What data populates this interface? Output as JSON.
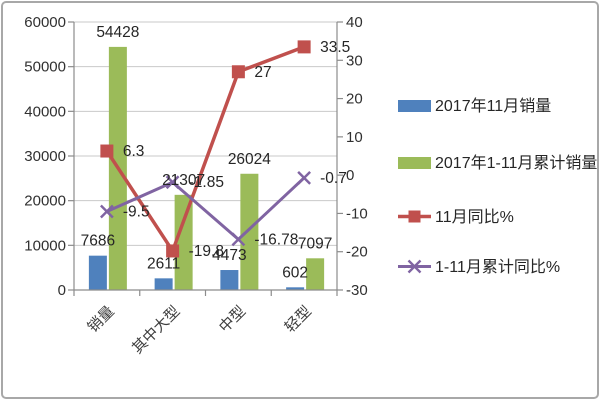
{
  "chart_data": {
    "type": "combo-bar-line",
    "categories": [
      "销量",
      "其中大型",
      "中型",
      "轻型"
    ],
    "series": [
      {
        "name": "2017年11月销量",
        "type": "bar",
        "axis": "left",
        "color": "#4f81bd",
        "values": [
          7686,
          2611,
          4473,
          602
        ]
      },
      {
        "name": "2017年1-11月累计销量",
        "type": "bar",
        "axis": "left",
        "color": "#9bbb59",
        "values": [
          54428,
          21307,
          26024,
          7097
        ]
      },
      {
        "name": "11月同比%",
        "type": "line",
        "axis": "right",
        "color": "#c0504d",
        "marker": "square",
        "values": [
          6.3,
          -19.8,
          27,
          33.5
        ]
      },
      {
        "name": "1-11月累计同比%",
        "type": "line",
        "axis": "right",
        "color": "#8064a2",
        "marker": "x",
        "values": [
          -9.5,
          -1.85,
          -16.78,
          -0.7
        ]
      }
    ],
    "left_axis": {
      "min": 0,
      "max": 60000,
      "step": 10000,
      "ticks": [
        "0",
        "10000",
        "20000",
        "30000",
        "40000",
        "50000",
        "60000"
      ]
    },
    "right_axis": {
      "min": -30,
      "max": 40,
      "step": 10,
      "ticks": [
        "-30",
        "-20",
        "-10",
        "0",
        "10",
        "20",
        "30",
        "40"
      ]
    },
    "grid": true,
    "data_labels": true,
    "legend_position": "right",
    "title": ""
  },
  "colors": {
    "gridline": "#c9c9c9",
    "axis_line": "#8c8c8c",
    "label_text": "#262626",
    "figure_border": "#a8a8a8"
  }
}
